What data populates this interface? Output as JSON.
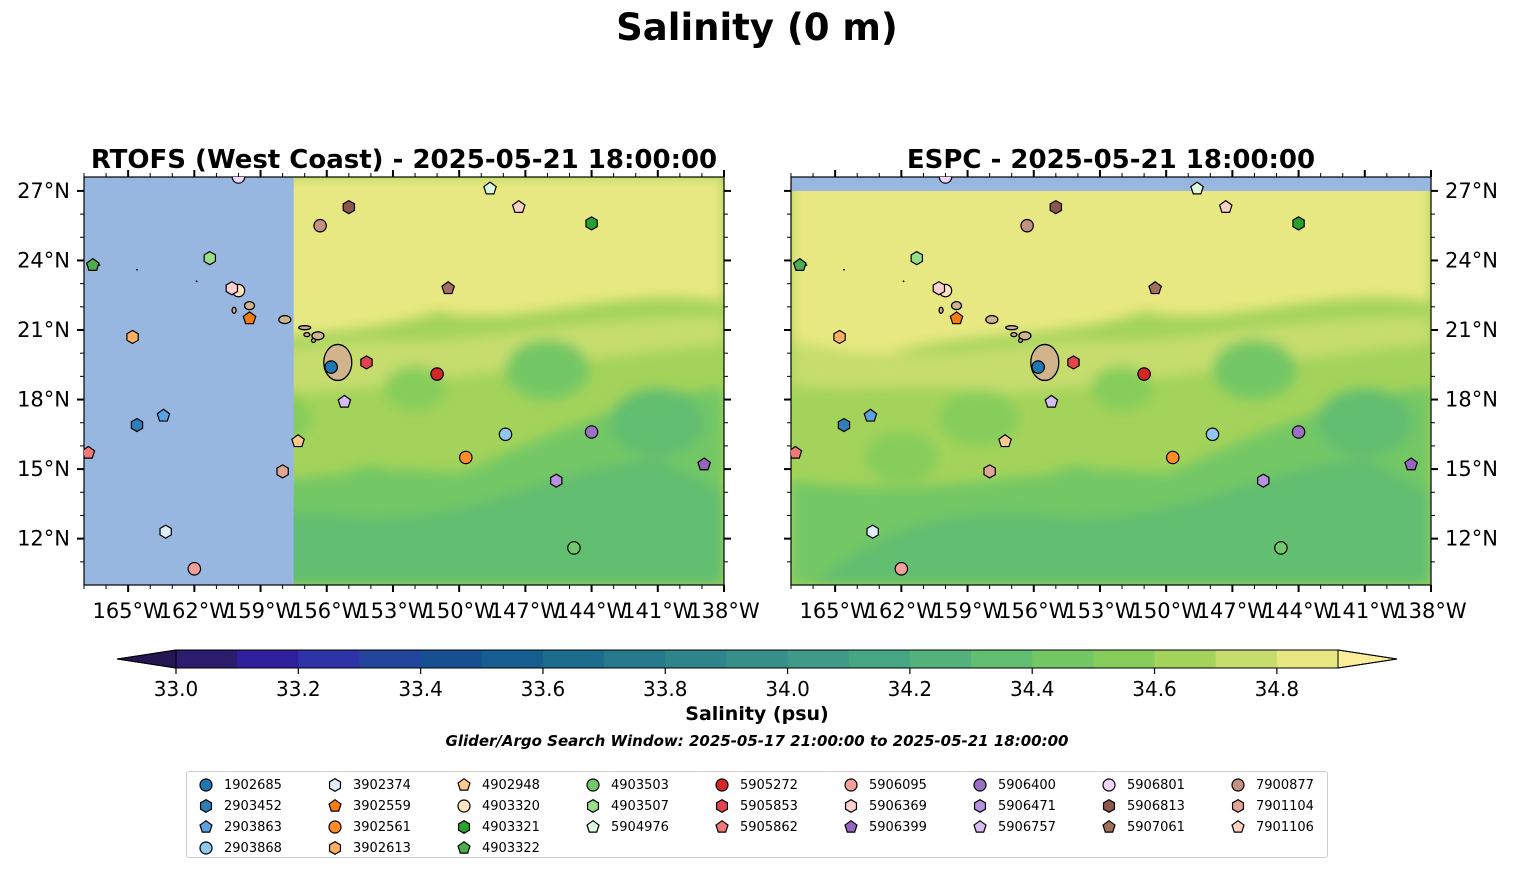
{
  "figure": {
    "title": "Salinity (0 m)",
    "search_window": "Glider/Argo Search Window: 2025-05-17 21:00:00 to 2025-05-21 18:00:00"
  },
  "chart_data": {
    "type": "heatmap",
    "panels": [
      {
        "title": "RTOFS (West Coast) - 2025-05-21 18:00:00",
        "model_cutoff_lon": -157.5
      },
      {
        "title": "ESPC - 2025-05-21 18:00:00",
        "model_cutoff_lat": 27.0
      }
    ],
    "lon_range": [
      -167,
      -138
    ],
    "lat_range": [
      10,
      27.6
    ],
    "x_ticks": [
      -165,
      -162,
      -159,
      -156,
      -153,
      -150,
      -147,
      -144,
      -141,
      -138
    ],
    "x_tick_labels": [
      "165°W",
      "162°W",
      "159°W",
      "156°W",
      "153°W",
      "150°W",
      "147°W",
      "144°W",
      "141°W",
      "138°W"
    ],
    "y_ticks": [
      12,
      15,
      18,
      21,
      24,
      27
    ],
    "y_tick_labels": [
      "12°N",
      "15°N",
      "18°N",
      "21°N",
      "24°N",
      "27°N"
    ],
    "colorbar": {
      "label": "Salinity (psu)",
      "min": 33.0,
      "max": 34.9,
      "step": 0.1,
      "ticks": [
        33.0,
        33.2,
        33.4,
        33.6,
        33.8,
        34.0,
        34.2,
        34.4,
        34.6,
        34.8
      ],
      "tick_labels": [
        "33.0",
        "33.2",
        "33.4",
        "33.6",
        "33.8",
        "34.0",
        "34.2",
        "34.4",
        "34.6",
        "34.8"
      ],
      "colors": [
        "#2b1c6e",
        "#2f219e",
        "#2e34a8",
        "#24459c",
        "#174f93",
        "#155e8f",
        "#1d6c8e",
        "#277a8c",
        "#2f858c",
        "#368f89",
        "#3f9b87",
        "#46a683",
        "#53b27c",
        "#62be70",
        "#73c765",
        "#86cd5c",
        "#a3d35a",
        "#c6dd6e",
        "#e7e881"
      ],
      "under_color": "#241652",
      "over_color": "#fbee9a"
    },
    "land_color": "#d2b48c",
    "nodata_color": "#97b6e0",
    "floats": [
      {
        "id": "1902685",
        "lon": -155.8,
        "lat": 19.4,
        "marker": "circle",
        "color": "#1f77b4"
      },
      {
        "id": "2903452",
        "lon": -164.6,
        "lat": 16.9,
        "marker": "hexagon",
        "color": "#2c7fb8"
      },
      {
        "id": "2903863",
        "lon": -163.4,
        "lat": 17.3,
        "marker": "pentagon",
        "color": "#5ca2e0"
      },
      {
        "id": "2903868",
        "lon": -147.9,
        "lat": 16.5,
        "marker": "circle",
        "color": "#8ec8f0"
      },
      {
        "id": "3902374",
        "lon": -163.3,
        "lat": 12.3,
        "marker": "hexagon",
        "color": "#dfeefa"
      },
      {
        "id": "3902559",
        "lon": -159.5,
        "lat": 21.5,
        "marker": "pentagon",
        "color": "#f97c10"
      },
      {
        "id": "3902561",
        "lon": -149.7,
        "lat": 15.5,
        "marker": "circle",
        "color": "#ff8c26"
      },
      {
        "id": "3902613",
        "lon": -164.8,
        "lat": 20.7,
        "marker": "hexagon",
        "color": "#ffb063"
      },
      {
        "id": "4902948",
        "lon": -157.3,
        "lat": 16.2,
        "marker": "pentagon",
        "color": "#ffc98c"
      },
      {
        "id": "4903320",
        "lon": -160.0,
        "lat": 22.7,
        "marker": "circle",
        "color": "#ffe4c2"
      },
      {
        "id": "4903321",
        "lon": -144.0,
        "lat": 25.6,
        "marker": "hexagon",
        "color": "#2ca02c"
      },
      {
        "id": "4903322",
        "lon": -166.6,
        "lat": 23.8,
        "marker": "pentagon",
        "color": "#4caf4c"
      },
      {
        "id": "4903503",
        "lon": -144.8,
        "lat": 11.6,
        "marker": "circle",
        "color": "#73c86b"
      },
      {
        "id": "4903507",
        "lon": -161.3,
        "lat": 24.1,
        "marker": "hexagon",
        "color": "#98df8a"
      },
      {
        "id": "5904976",
        "lon": -148.6,
        "lat": 27.1,
        "marker": "pentagon",
        "color": "#dffbe0"
      },
      {
        "id": "5905272",
        "lon": -151.0,
        "lat": 19.1,
        "marker": "circle",
        "color": "#d62728"
      },
      {
        "id": "5905853",
        "lon": -154.2,
        "lat": 19.6,
        "marker": "hexagon",
        "color": "#e0444e"
      },
      {
        "id": "5905862",
        "lon": -166.8,
        "lat": 15.7,
        "marker": "pentagon",
        "color": "#f07878"
      },
      {
        "id": "5906095",
        "lon": -162.0,
        "lat": 10.7,
        "marker": "circle",
        "color": "#f4a09a"
      },
      {
        "id": "5906369",
        "lon": -160.3,
        "lat": 22.8,
        "marker": "hexagon",
        "color": "#fbcfcf"
      },
      {
        "id": "5906399",
        "lon": -138.9,
        "lat": 15.2,
        "marker": "pentagon",
        "color": "#9467bd"
      },
      {
        "id": "5906400",
        "lon": -144.0,
        "lat": 16.6,
        "marker": "circle",
        "color": "#9a6fc4"
      },
      {
        "id": "5906471",
        "lon": -145.6,
        "lat": 14.5,
        "marker": "hexagon",
        "color": "#b691dc"
      },
      {
        "id": "5906757",
        "lon": -155.2,
        "lat": 17.9,
        "marker": "pentagon",
        "color": "#d5bdf2"
      },
      {
        "id": "5906801",
        "lon": -160.0,
        "lat": 27.6,
        "marker": "circle",
        "color": "#f1d6fb"
      },
      {
        "id": "5906813",
        "lon": -155.0,
        "lat": 26.3,
        "marker": "hexagon",
        "color": "#8c564b"
      },
      {
        "id": "5907061",
        "lon": -150.5,
        "lat": 22.8,
        "marker": "pentagon",
        "color": "#a46e5c"
      },
      {
        "id": "7900877",
        "lon": -156.3,
        "lat": 25.5,
        "marker": "circle",
        "color": "#c49182"
      },
      {
        "id": "7901104",
        "lon": -158.0,
        "lat": 14.9,
        "marker": "hexagon",
        "color": "#e3a593"
      },
      {
        "id": "7901106",
        "lon": -147.3,
        "lat": 26.3,
        "marker": "pentagon",
        "color": "#fbd2c2"
      }
    ]
  }
}
